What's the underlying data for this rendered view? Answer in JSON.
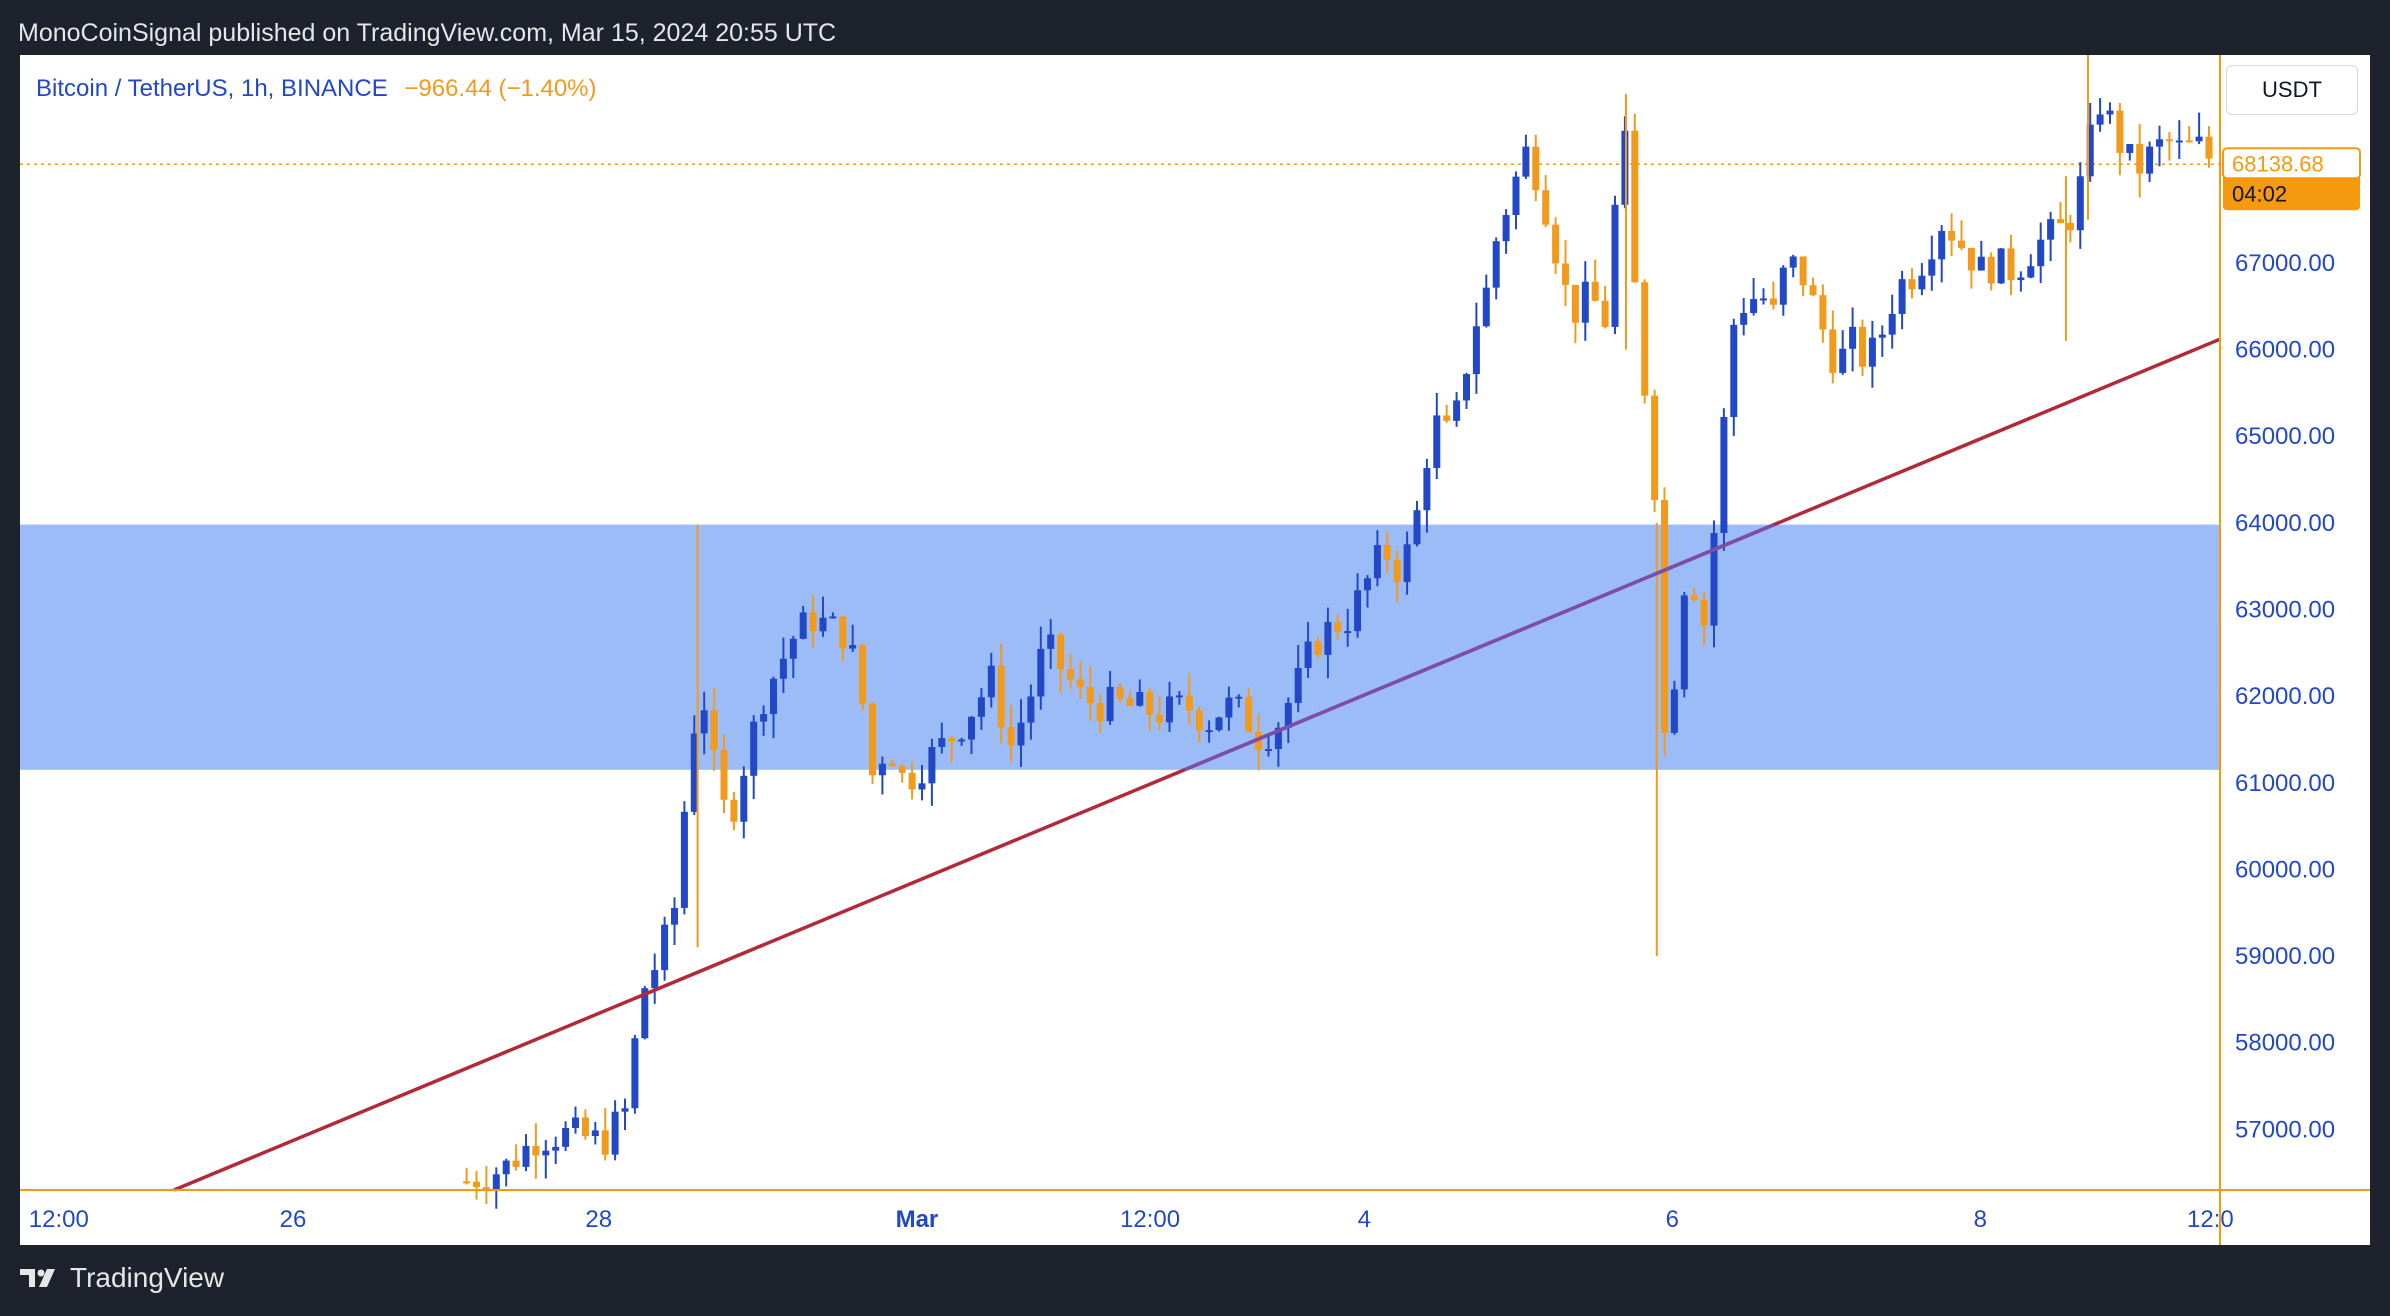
{
  "header": {
    "publish_line": "MonoCoinSignal published on TradingView.com, Mar 15, 2024 20:55 UTC"
  },
  "legend": {
    "symbol_line": "Bitcoin / TetherUS, 1h, BINANCE",
    "change": "−966.44 (−1.40%)"
  },
  "currency_button": "USDT",
  "footer": {
    "brand": "TradingView"
  },
  "colors": {
    "up": "#2248c8",
    "down": "#f29a1c",
    "zone": "#9cbcf7",
    "trendline": "#b22a3a",
    "axis_text": "#2248c8",
    "price_tag": "#f5990e"
  },
  "chart_data": {
    "type": "candlestick",
    "title": "Bitcoin / TetherUS, 1h, BINANCE",
    "currency": "USDT",
    "ylim": [
      56300,
      69400
    ],
    "y_ticks": [
      "67000.00",
      "66000.00",
      "65000.00",
      "64000.00",
      "63000.00",
      "62000.00",
      "61000.00",
      "60000.00",
      "59000.00",
      "58000.00",
      "57000.00"
    ],
    "x_ticks": [
      {
        "label": "12:00",
        "bold": false
      },
      {
        "label": "26",
        "bold": false
      },
      {
        "label": "28",
        "bold": false
      },
      {
        "label": "Mar",
        "bold": true
      },
      {
        "label": "12:00",
        "bold": false
      },
      {
        "label": "4",
        "bold": false
      },
      {
        "label": "6",
        "bold": false
      },
      {
        "label": "8",
        "bold": false
      },
      {
        "label": "12:0",
        "bold": false
      }
    ],
    "last_price": "68138.68",
    "countdown": "04:02",
    "support_zone": {
      "low": 61150,
      "high": 63980
    },
    "trendline": {
      "start_value": 56300,
      "end_value": 66120
    },
    "price_path": [
      {
        "x": 0.203,
        "y": 56400
      },
      {
        "x": 0.22,
        "y": 56550
      },
      {
        "x": 0.235,
        "y": 56900
      },
      {
        "x": 0.25,
        "y": 56950
      },
      {
        "x": 0.265,
        "y": 56850
      },
      {
        "x": 0.275,
        "y": 57200
      },
      {
        "x": 0.283,
        "y": 58600
      },
      {
        "x": 0.291,
        "y": 59000
      },
      {
        "x": 0.298,
        "y": 59600
      },
      {
        "x": 0.305,
        "y": 61500
      },
      {
        "x": 0.31,
        "y": 62100
      },
      {
        "x": 0.316,
        "y": 61100
      },
      {
        "x": 0.322,
        "y": 60500
      },
      {
        "x": 0.33,
        "y": 61300
      },
      {
        "x": 0.338,
        "y": 62000
      },
      {
        "x": 0.346,
        "y": 62400
      },
      {
        "x": 0.352,
        "y": 62700
      },
      {
        "x": 0.36,
        "y": 62900
      },
      {
        "x": 0.368,
        "y": 62800
      },
      {
        "x": 0.376,
        "y": 62700
      },
      {
        "x": 0.382,
        "y": 62100
      },
      {
        "x": 0.388,
        "y": 61000
      },
      {
        "x": 0.394,
        "y": 61500
      },
      {
        "x": 0.402,
        "y": 61000
      },
      {
        "x": 0.41,
        "y": 61200
      },
      {
        "x": 0.418,
        "y": 61400
      },
      {
        "x": 0.426,
        "y": 61600
      },
      {
        "x": 0.434,
        "y": 61900
      },
      {
        "x": 0.442,
        "y": 62200
      },
      {
        "x": 0.45,
        "y": 61400
      },
      {
        "x": 0.458,
        "y": 61900
      },
      {
        "x": 0.466,
        "y": 62600
      },
      {
        "x": 0.474,
        "y": 62300
      },
      {
        "x": 0.482,
        "y": 62000
      },
      {
        "x": 0.49,
        "y": 61900
      },
      {
        "x": 0.5,
        "y": 61900
      },
      {
        "x": 0.51,
        "y": 61850
      },
      {
        "x": 0.52,
        "y": 61800
      },
      {
        "x": 0.53,
        "y": 61900
      },
      {
        "x": 0.54,
        "y": 61700
      },
      {
        "x": 0.548,
        "y": 61900
      },
      {
        "x": 0.556,
        "y": 61800
      },
      {
        "x": 0.564,
        "y": 61500
      },
      {
        "x": 0.572,
        "y": 61700
      },
      {
        "x": 0.58,
        "y": 62100
      },
      {
        "x": 0.588,
        "y": 62600
      },
      {
        "x": 0.596,
        "y": 62800
      },
      {
        "x": 0.604,
        "y": 62900
      },
      {
        "x": 0.612,
        "y": 63300
      },
      {
        "x": 0.62,
        "y": 63700
      },
      {
        "x": 0.628,
        "y": 63400
      },
      {
        "x": 0.636,
        "y": 64200
      },
      {
        "x": 0.642,
        "y": 65200
      },
      {
        "x": 0.648,
        "y": 65000
      },
      {
        "x": 0.654,
        "y": 65300
      },
      {
        "x": 0.66,
        "y": 66200
      },
      {
        "x": 0.666,
        "y": 66600
      },
      {
        "x": 0.672,
        "y": 67400
      },
      {
        "x": 0.678,
        "y": 67800
      },
      {
        "x": 0.684,
        "y": 68300
      },
      {
        "x": 0.69,
        "y": 68000
      },
      {
        "x": 0.696,
        "y": 67400
      },
      {
        "x": 0.702,
        "y": 66700
      },
      {
        "x": 0.708,
        "y": 66400
      },
      {
        "x": 0.714,
        "y": 66700
      },
      {
        "x": 0.72,
        "y": 66200
      },
      {
        "x": 0.726,
        "y": 67900
      },
      {
        "x": 0.73,
        "y": 68400
      },
      {
        "x": 0.734,
        "y": 66700
      },
      {
        "x": 0.738,
        "y": 65600
      },
      {
        "x": 0.742,
        "y": 65400
      },
      {
        "x": 0.746,
        "y": 61600
      },
      {
        "x": 0.75,
        "y": 61500
      },
      {
        "x": 0.754,
        "y": 63000
      },
      {
        "x": 0.758,
        "y": 63500
      },
      {
        "x": 0.762,
        "y": 63200
      },
      {
        "x": 0.766,
        "y": 62800
      },
      {
        "x": 0.77,
        "y": 63900
      },
      {
        "x": 0.774,
        "y": 65000
      },
      {
        "x": 0.778,
        "y": 66200
      },
      {
        "x": 0.782,
        "y": 66600
      },
      {
        "x": 0.786,
        "y": 66400
      },
      {
        "x": 0.79,
        "y": 66800
      },
      {
        "x": 0.796,
        "y": 66300
      },
      {
        "x": 0.802,
        "y": 66900
      },
      {
        "x": 0.808,
        "y": 67000
      },
      {
        "x": 0.814,
        "y": 66600
      },
      {
        "x": 0.82,
        "y": 66200
      },
      {
        "x": 0.826,
        "y": 65800
      },
      {
        "x": 0.832,
        "y": 66100
      },
      {
        "x": 0.838,
        "y": 65900
      },
      {
        "x": 0.844,
        "y": 66000
      },
      {
        "x": 0.85,
        "y": 66500
      },
      {
        "x": 0.856,
        "y": 66800
      },
      {
        "x": 0.862,
        "y": 66900
      },
      {
        "x": 0.868,
        "y": 67200
      },
      {
        "x": 0.874,
        "y": 67500
      },
      {
        "x": 0.88,
        "y": 67300
      },
      {
        "x": 0.886,
        "y": 67100
      },
      {
        "x": 0.892,
        "y": 66900
      },
      {
        "x": 0.898,
        "y": 67000
      },
      {
        "x": 0.904,
        "y": 66900
      },
      {
        "x": 0.91,
        "y": 67000
      },
      {
        "x": 0.916,
        "y": 67200
      },
      {
        "x": 0.922,
        "y": 67300
      },
      {
        "x": 0.928,
        "y": 67400
      },
      {
        "x": 0.934,
        "y": 67600
      },
      {
        "x": 0.94,
        "y": 68300
      },
      {
        "x": 0.946,
        "y": 68900
      },
      {
        "x": 0.952,
        "y": 68500
      },
      {
        "x": 0.958,
        "y": 68200
      },
      {
        "x": 0.964,
        "y": 68100
      },
      {
        "x": 0.97,
        "y": 68300
      },
      {
        "x": 0.976,
        "y": 68400
      },
      {
        "x": 0.982,
        "y": 68300
      },
      {
        "x": 0.99,
        "y": 68350
      },
      {
        "x": 0.998,
        "y": 68138.68
      }
    ],
    "wick_spikes": [
      {
        "x": 0.308,
        "high": 63980,
        "low": 59100
      },
      {
        "x": 0.73,
        "high": 68950,
        "low": 66000
      },
      {
        "x": 0.744,
        "high": 64000,
        "low": 59000
      },
      {
        "x": 0.93,
        "high": 68000,
        "low": 66100
      },
      {
        "x": 0.94,
        "high": 69400,
        "low": 67500
      }
    ]
  }
}
